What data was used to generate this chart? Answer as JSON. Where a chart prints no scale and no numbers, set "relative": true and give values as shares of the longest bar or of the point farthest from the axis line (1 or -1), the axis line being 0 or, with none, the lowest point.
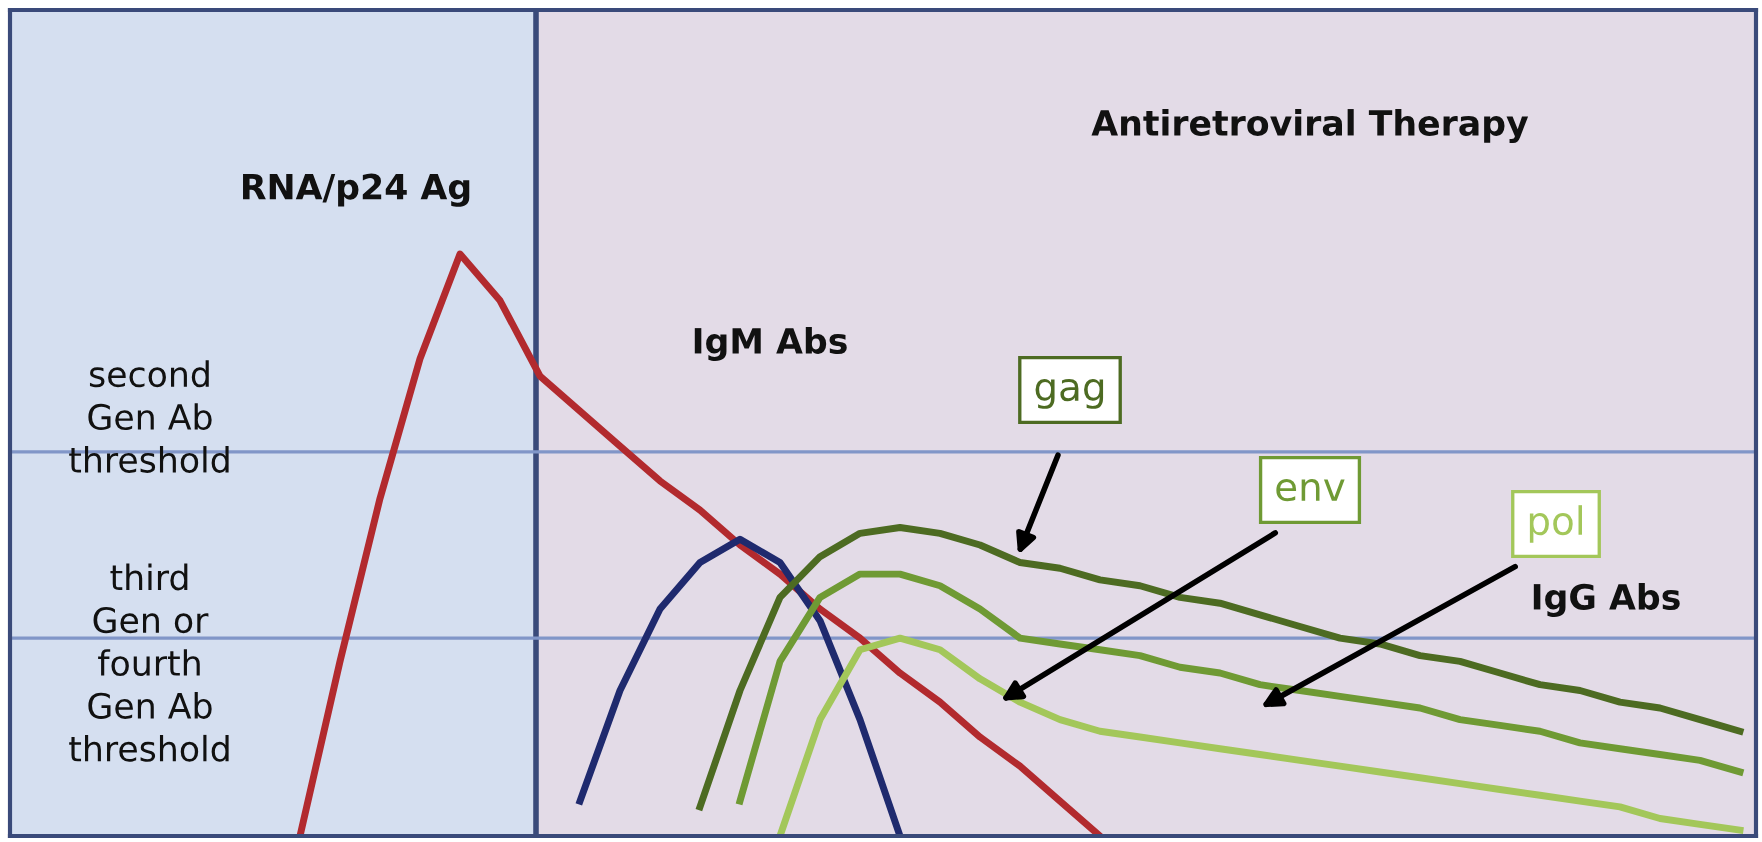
{
  "chart_data": {
    "type": "line",
    "relative": true,
    "legend": false,
    "grid": false,
    "marker": "none",
    "line_style": "solid",
    "categories": [
      null,
      null,
      null,
      null,
      null,
      null,
      null,
      null,
      null,
      null,
      null,
      null,
      null,
      null,
      null,
      null,
      null,
      null,
      null,
      null,
      null,
      null,
      null,
      null,
      null,
      null,
      null,
      null,
      null,
      null,
      null,
      null,
      null,
      null,
      null,
      null,
      null
    ],
    "series": [
      {
        "name": "RNA/p24 Ag",
        "color": "#b22a2e",
        "values": [
          0,
          0.3,
          0.58,
          0.82,
          1.0,
          0.92,
          0.79,
          0.73,
          0.67,
          0.61,
          0.56,
          0.5,
          0.45,
          0.39,
          0.34,
          0.28,
          0.23,
          0.17,
          0.12,
          0.06,
          0,
          null,
          null,
          null,
          null,
          null,
          null,
          null,
          null,
          null,
          null,
          null,
          null,
          null,
          null,
          null,
          null
        ]
      },
      {
        "color": "#1f2a6e",
        "values": [
          null,
          null,
          null,
          null,
          null,
          null,
          null,
          0.06,
          0.25,
          0.39,
          0.47,
          0.51,
          0.47,
          0.37,
          0.2,
          0,
          null,
          null,
          null,
          null,
          null,
          null,
          null,
          null,
          null,
          null,
          null,
          null,
          null,
          null,
          null,
          null,
          null,
          null,
          null,
          null,
          null
        ]
      },
      {
        "name": "gag",
        "color": "#4d6b22",
        "values": [
          null,
          null,
          null,
          null,
          null,
          null,
          null,
          null,
          null,
          null,
          0.05,
          0.25,
          0.41,
          0.48,
          0.52,
          0.53,
          0.52,
          0.5,
          0.47,
          0.46,
          0.44,
          0.43,
          0.41,
          0.4,
          0.38,
          0.36,
          0.34,
          0.33,
          0.31,
          0.3,
          0.28,
          0.26,
          0.25,
          0.23,
          0.22,
          0.2,
          0.18
        ]
      },
      {
        "name": "env",
        "color": "#6f9a34",
        "values": [
          null,
          null,
          null,
          null,
          null,
          null,
          null,
          null,
          null,
          null,
          null,
          0.06,
          0.3,
          0.41,
          0.45,
          0.45,
          0.43,
          0.39,
          0.34,
          0.33,
          0.32,
          0.31,
          0.29,
          0.28,
          0.26,
          0.25,
          0.24,
          0.23,
          0.22,
          0.2,
          0.19,
          0.18,
          0.16,
          0.15,
          0.14,
          0.13,
          0.11
        ]
      },
      {
        "name": "pol",
        "color": "#a3c75a",
        "values": [
          null,
          null,
          null,
          null,
          null,
          null,
          null,
          null,
          null,
          null,
          null,
          null,
          0,
          0.2,
          0.32,
          0.34,
          0.32,
          0.27,
          0.23,
          0.2,
          0.18,
          0.17,
          0.16,
          0.15,
          0.14,
          0.13,
          0.12,
          0.11,
          0.1,
          0.09,
          0.08,
          0.07,
          0.06,
          0.05,
          0.03,
          0.02,
          0.01
        ]
      }
    ],
    "ref_lines": [
      {
        "axis": "y",
        "value": 0.66,
        "color": "#8196c8",
        "line_style": "solid",
        "label": "second\nGen Ab\nthreshold"
      },
      {
        "axis": "y",
        "value": 0.34,
        "color": "#8196c8",
        "line_style": "solid",
        "label": "third\nGen or\nfourth\nGen Ab\nthreshold"
      }
    ],
    "annotations": [
      "IgG Abs",
      "Antiretroviral Therapy",
      "IgM Abs"
    ]
  }
}
